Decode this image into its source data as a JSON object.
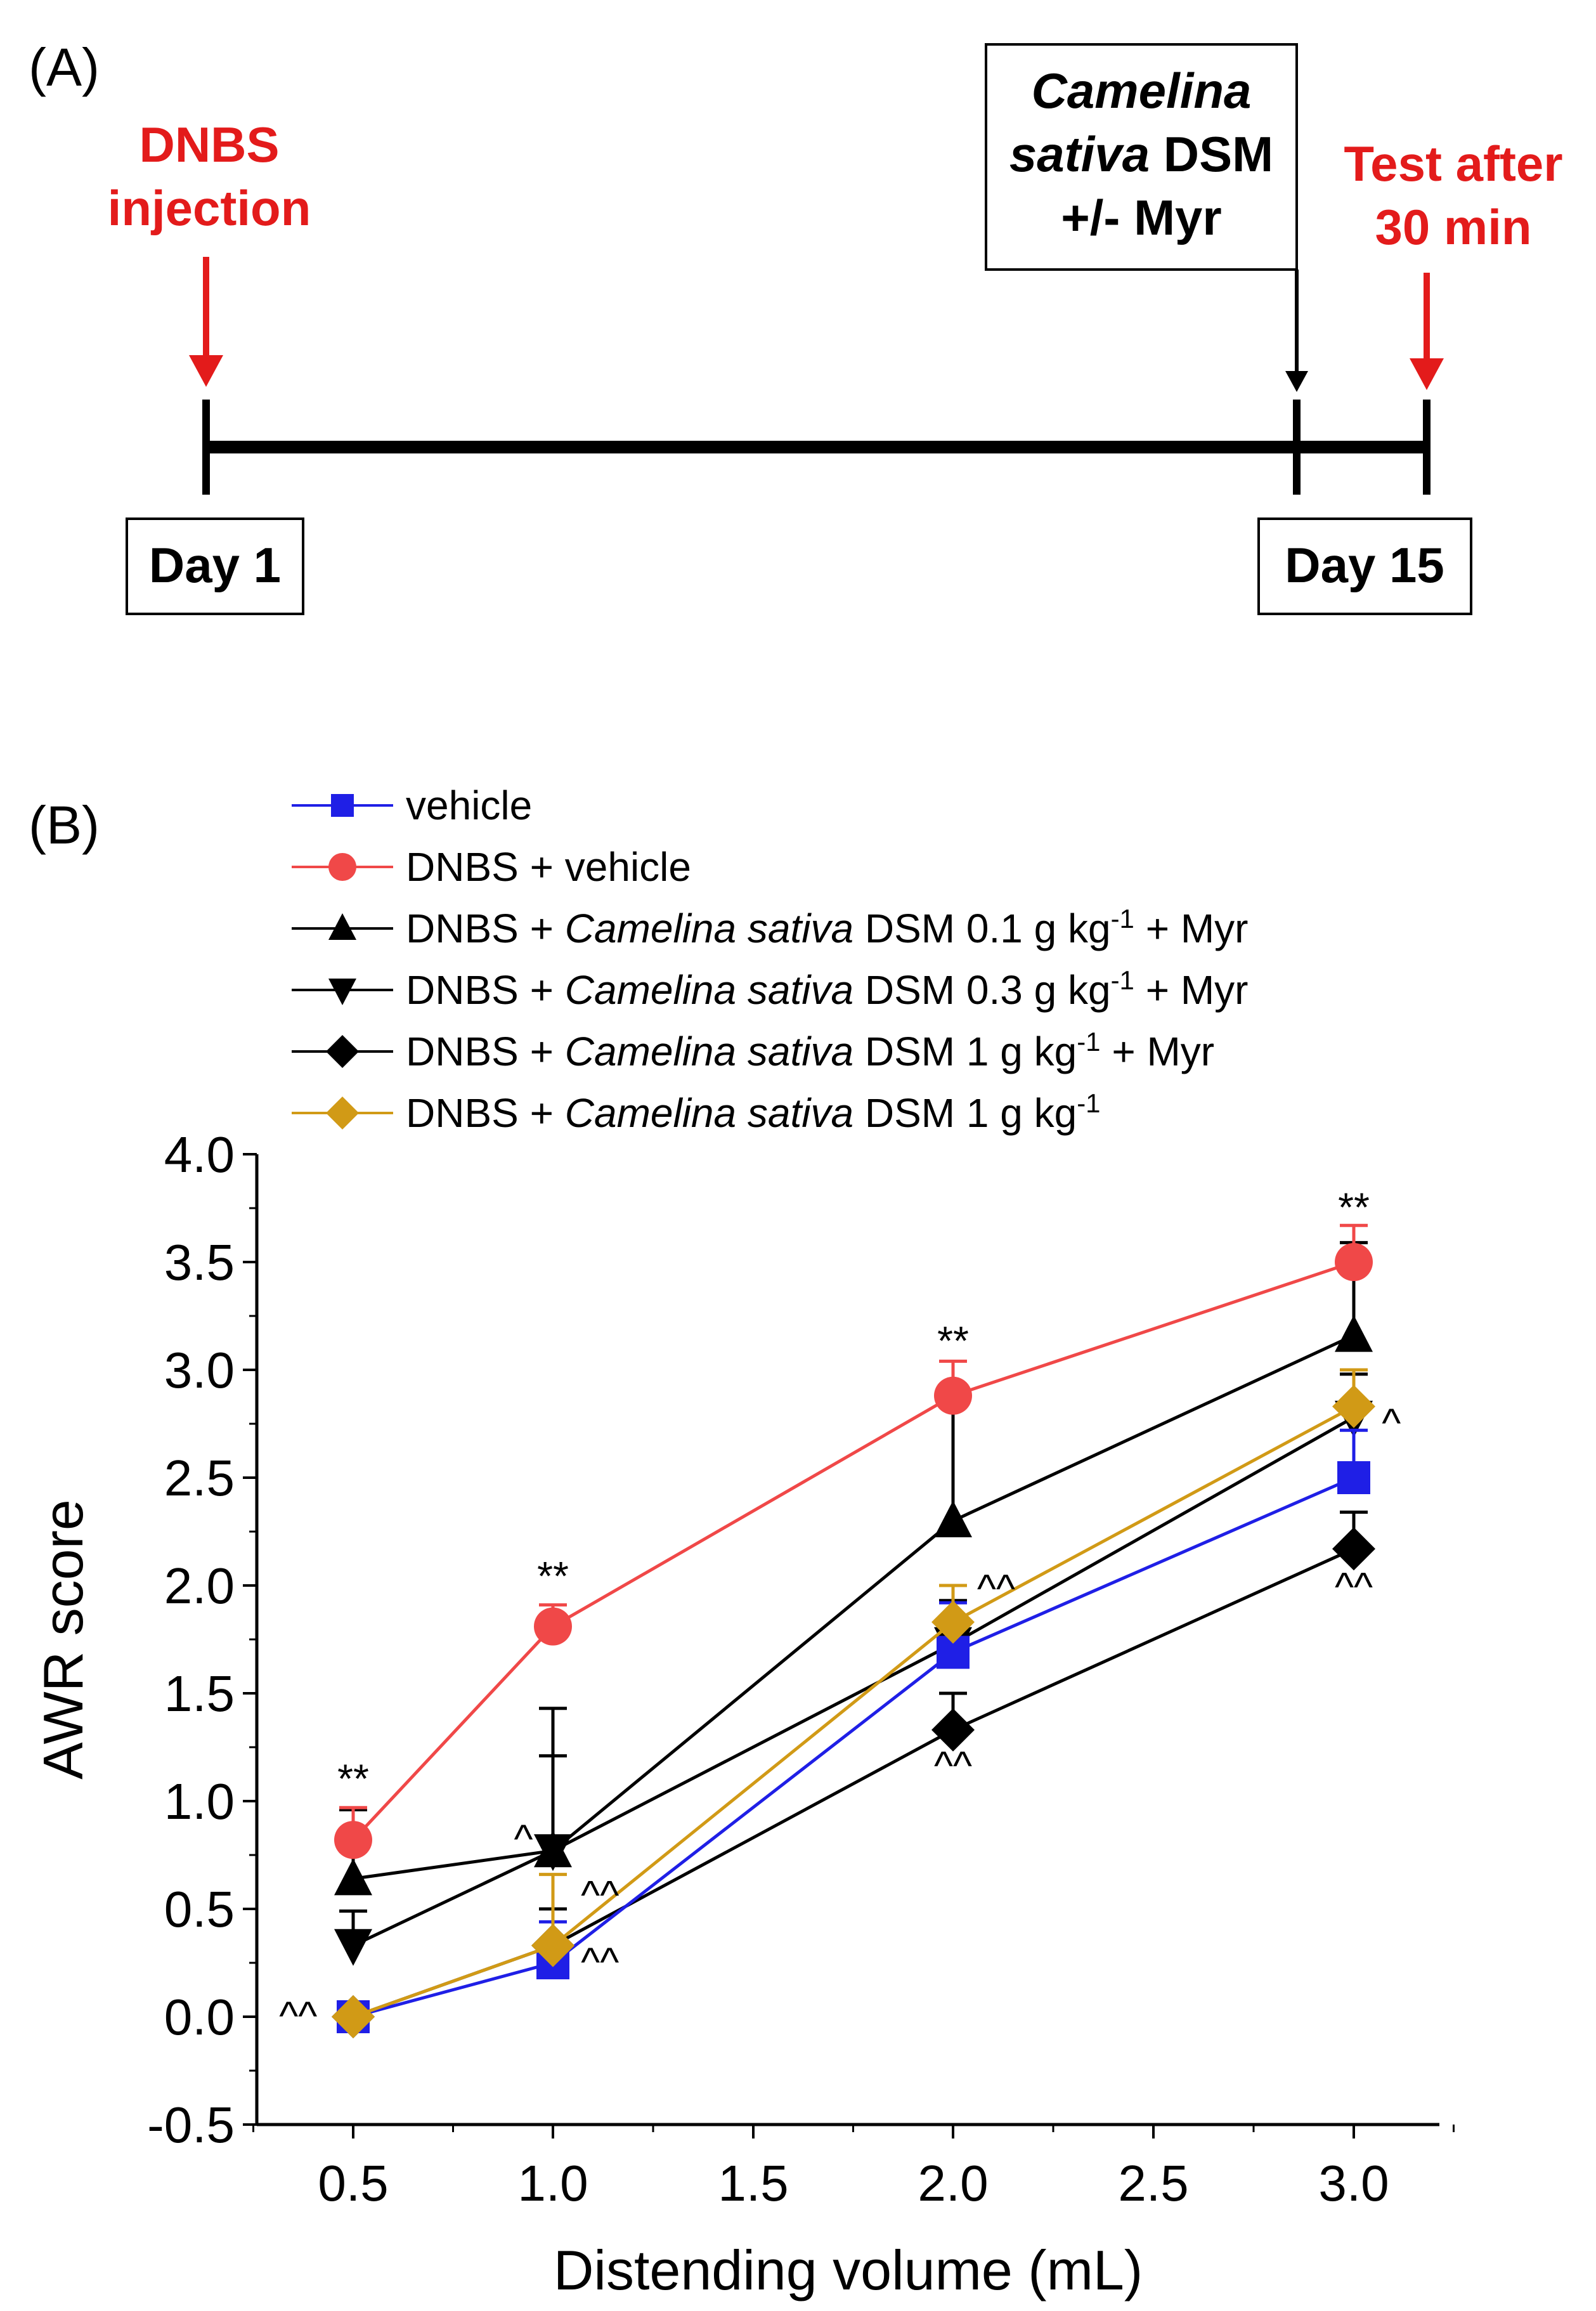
{
  "panel_a": {
    "label": "(A)",
    "dnbs_line1": "DNBS",
    "dnbs_line2": "injection",
    "treatment_line1": "Camelina",
    "treatment_line2_italic": "sativa",
    "treatment_line2_rest": " DSM",
    "treatment_line3": "+/- Myr",
    "test_line1": "Test after",
    "test_line2": "30 min",
    "day_start": "Day 1",
    "day_end": "Day 15"
  },
  "panel_b": {
    "label": "(B)"
  },
  "colors": {
    "vehicle": "#1f1fe6",
    "dnbs_vehicle": "#f04848",
    "black": "#000000",
    "gold": "#d19a16",
    "timeline_red": "#e31b1b"
  },
  "chart_data": {
    "type": "line",
    "xlabel": "Distending volume (mL)",
    "ylabel": "AWR score",
    "categories": [
      "0.5",
      "1.0",
      "2.0",
      "3.0"
    ],
    "x_tick_labels": [
      "0.5",
      "1.0",
      "1.5",
      "2.0",
      "2.5",
      "3.0"
    ],
    "y_tick_labels": [
      "-0.5",
      "0.0",
      "0.5",
      "1.0",
      "1.5",
      "2.0",
      "2.5",
      "3.0",
      "3.5",
      "4.0"
    ],
    "ylim": [
      -0.5,
      4.0
    ],
    "series": [
      {
        "name": "vehicle",
        "legend": [
          {
            "t": "vehicle"
          }
        ],
        "color": "#1f1fe6",
        "marker": "square",
        "values": [
          0.0,
          0.25,
          1.69,
          2.5
        ],
        "errors": [
          0.0,
          0.19,
          0.23,
          0.22
        ]
      },
      {
        "name": "DNBS + vehicle",
        "legend": [
          {
            "t": "DNBS + vehicle"
          }
        ],
        "color": "#f04848",
        "marker": "circle",
        "values": [
          0.82,
          1.81,
          2.88,
          3.5
        ],
        "errors": [
          0.15,
          0.1,
          0.16,
          0.17
        ]
      },
      {
        "name": "DNBS + Camelina sativa DSM 0.1 g kg-1 + Myr",
        "legend": [
          {
            "t": "DNBS + "
          },
          {
            "t": "Camelina sativa",
            "i": true
          },
          {
            "t": " DSM 0.1 g kg"
          },
          {
            "t": "-1",
            "sup": true
          },
          {
            "t": " + Myr"
          }
        ],
        "color": "#000000",
        "marker": "triangle-up",
        "values": [
          0.64,
          0.77,
          2.3,
          3.16
        ],
        "errors": [
          0.32,
          0.66,
          0.58,
          0.43
        ]
      },
      {
        "name": "DNBS + Camelina sativa DSM 0.3 g kg-1 + Myr",
        "legend": [
          {
            "t": "DNBS + "
          },
          {
            "t": "Camelina sativa",
            "i": true
          },
          {
            "t": " DSM 0.3 g kg"
          },
          {
            "t": "-1",
            "sup": true
          },
          {
            "t": " + Myr"
          }
        ],
        "color": "#000000",
        "marker": "triangle-down",
        "values": [
          0.33,
          0.77,
          1.73,
          2.78
        ],
        "errors": [
          0.16,
          0.44,
          0.2,
          0.2
        ]
      },
      {
        "name": "DNBS + Camelina sativa DSM 1 g kg-1 + Myr",
        "legend": [
          {
            "t": "DNBS + "
          },
          {
            "t": "Camelina sativa",
            "i": true
          },
          {
            "t": " DSM 1 g kg"
          },
          {
            "t": "-1",
            "sup": true
          },
          {
            "t": " + Myr"
          }
        ],
        "color": "#000000",
        "marker": "diamond",
        "values": [
          0.0,
          0.33,
          1.33,
          2.17
        ],
        "errors": [
          0.0,
          0.17,
          0.17,
          0.17
        ]
      },
      {
        "name": "DNBS + Camelina sativa DSM 1 g kg-1",
        "legend": [
          {
            "t": "DNBS + "
          },
          {
            "t": "Camelina sativa",
            "i": true
          },
          {
            "t": " DSM 1 g kg"
          },
          {
            "t": "-1",
            "sup": true
          }
        ],
        "color": "#d19a16",
        "marker": "diamond",
        "values": [
          0.0,
          0.33,
          1.83,
          2.83
        ],
        "errors": [
          0.0,
          0.33,
          0.17,
          0.17
        ]
      }
    ],
    "annotations": [
      {
        "text": "**",
        "x": 0.5,
        "y": 1.04,
        "anchor": "middle"
      },
      {
        "text": "**",
        "x": 1.0,
        "y": 1.98,
        "anchor": "middle"
      },
      {
        "text": "**",
        "x": 2.0,
        "y": 3.07,
        "anchor": "middle"
      },
      {
        "text": "**",
        "x": 3.0,
        "y": 3.69,
        "anchor": "middle"
      },
      {
        "text": "^^",
        "x": 0.41,
        "y": -0.06,
        "anchor": "end"
      },
      {
        "text": "^",
        "x": 0.95,
        "y": 0.76,
        "anchor": "end"
      },
      {
        "text": "^^",
        "x": 1.07,
        "y": 0.5,
        "anchor": "start"
      },
      {
        "text": "^^",
        "x": 1.07,
        "y": 0.19,
        "anchor": "start"
      },
      {
        "text": "^^",
        "x": 2.06,
        "y": 1.92,
        "anchor": "start"
      },
      {
        "text": "^^",
        "x": 2.0,
        "y": 1.1,
        "anchor": "middle"
      },
      {
        "text": "^",
        "x": 3.07,
        "y": 2.69,
        "anchor": "start"
      },
      {
        "text": "^^",
        "x": 3.0,
        "y": 1.93,
        "anchor": "middle"
      }
    ]
  }
}
